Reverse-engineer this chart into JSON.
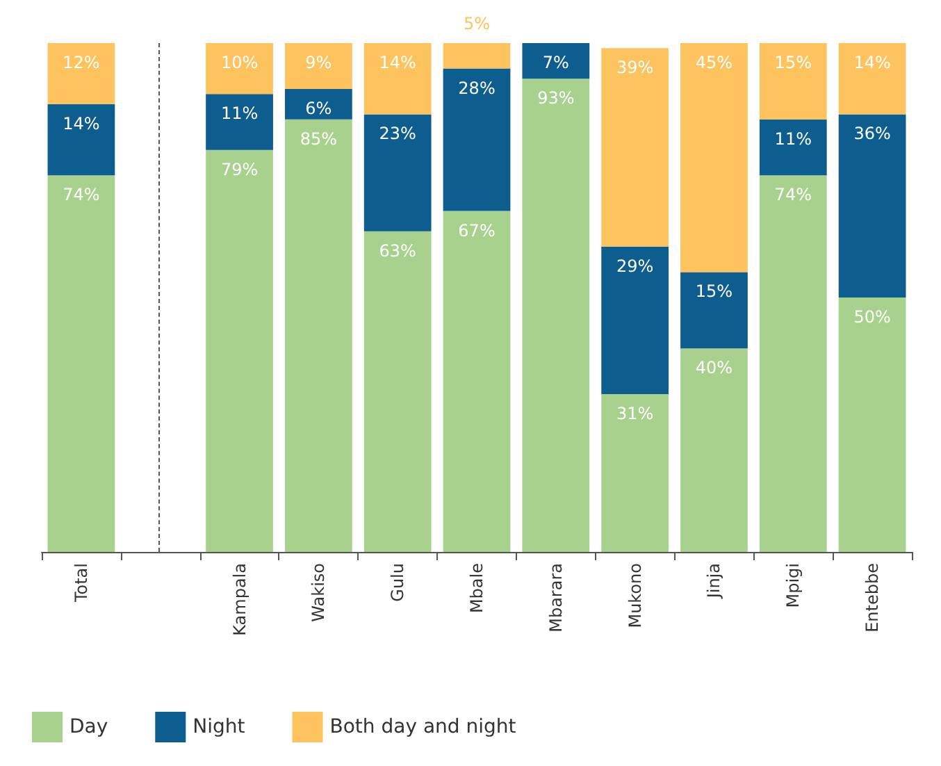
{
  "chart_data": {
    "type": "bar",
    "stacked": true,
    "legend": "bottom left",
    "categories": [
      "Total",
      null,
      "Kampala",
      "Wakiso",
      "Gulu",
      "Mbale",
      "Mbarara",
      "Mukono",
      "Jinja",
      "Mpigi",
      "Entebbe"
    ],
    "series": [
      {
        "name": "Day",
        "color": "#a9d18e",
        "values": [
          74,
          null,
          79,
          85,
          63,
          67,
          93,
          31,
          40,
          74,
          50
        ],
        "value_labels": [
          "74%",
          null,
          "79%",
          "85%",
          "63%",
          "67%",
          "93%",
          "31%",
          "40%",
          "74%",
          "50%"
        ]
      },
      {
        "name": "Night",
        "color": "#0e5d8f",
        "values": [
          14,
          null,
          11,
          6,
          23,
          28,
          7,
          29,
          15,
          11,
          36
        ],
        "value_labels": [
          "14%",
          null,
          "11%",
          "6%",
          "23%",
          "28%",
          "7%",
          "29%",
          "15%",
          "11%",
          "36%"
        ]
      },
      {
        "name": "Both day and night",
        "color": "#fdc35e",
        "values": [
          12,
          null,
          10,
          9,
          14,
          5,
          null,
          39,
          45,
          15,
          14
        ],
        "value_labels": [
          "12%",
          null,
          "10%",
          "9%",
          "14%",
          "5%",
          null,
          "39%",
          "45%",
          "15%",
          "14%"
        ]
      }
    ]
  }
}
